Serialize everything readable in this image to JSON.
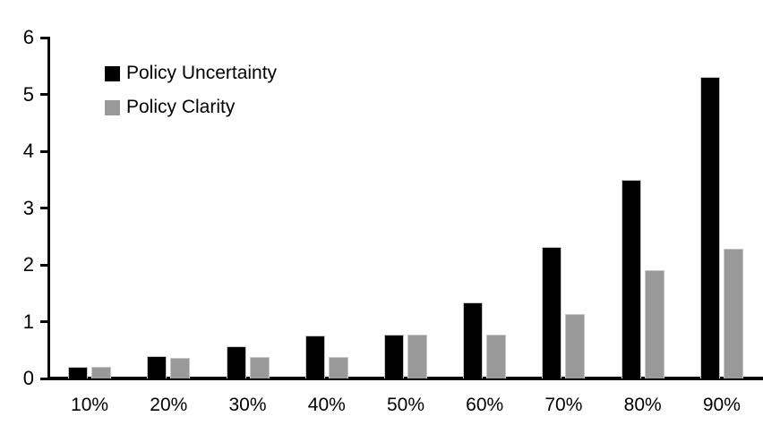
{
  "chart_data": {
    "type": "bar",
    "title": "",
    "xlabel": "",
    "ylabel": "",
    "categories": [
      "10%",
      "20%",
      "30%",
      "40%",
      "50%",
      "60%",
      "70%",
      "80%",
      "90%"
    ],
    "series": [
      {
        "name": "Policy Uncertainty",
        "color": "#000000",
        "values": [
          0.2,
          0.4,
          0.56,
          0.76,
          0.78,
          1.34,
          2.31,
          3.5,
          5.31
        ]
      },
      {
        "name": "Policy Clarity",
        "color": "#999999",
        "values": [
          0.2,
          0.37,
          0.38,
          0.38,
          0.78,
          0.78,
          1.14,
          1.9,
          2.29
        ]
      }
    ],
    "ylim": [
      0,
      6
    ],
    "yticks": [
      0,
      1,
      2,
      3,
      4,
      5,
      6
    ],
    "grid": false,
    "legend_position": "top-left-inside",
    "axis_color": "#000000",
    "bar_outline_color": "#c6c6c6"
  }
}
